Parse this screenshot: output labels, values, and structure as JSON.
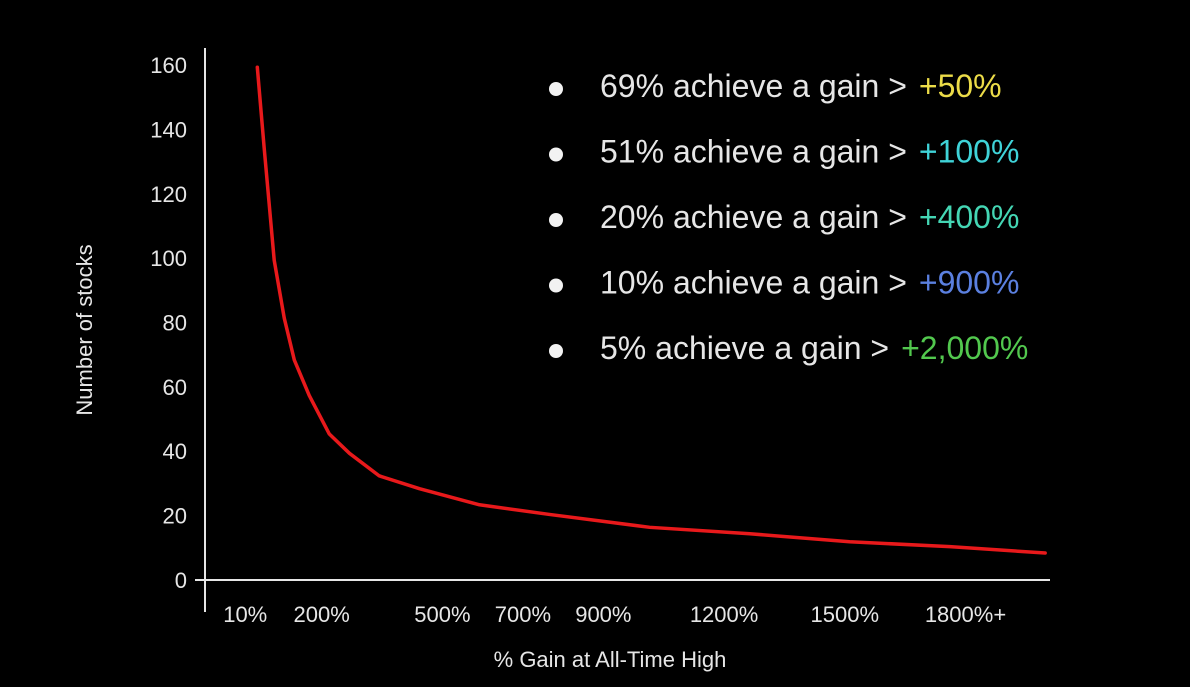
{
  "chart_data": {
    "type": "line",
    "y_label": "Number of stocks",
    "x_label": "% Gain at All-Time High",
    "x": [
      40,
      57,
      82,
      107,
      132,
      169,
      219,
      269,
      343,
      443,
      592,
      766,
      1015,
      1264,
      1512,
      1761,
      1998
    ],
    "values": [
      160,
      135,
      100,
      82,
      69,
      58,
      46,
      40,
      33,
      29,
      24,
      21,
      17,
      15,
      12.5,
      11,
      9
    ],
    "color": "#e8191b",
    "xlim": [
      -90,
      2010
    ],
    "xticks": [
      {
        "value": 10,
        "label": "10%"
      },
      {
        "value": 200,
        "label": "200%"
      },
      {
        "value": 500,
        "label": "500%"
      },
      {
        "value": 700,
        "label": "700%"
      },
      {
        "value": 900,
        "label": "900%"
      },
      {
        "value": 1200,
        "label": "1200%"
      },
      {
        "value": 1500,
        "label": "1500%"
      },
      {
        "value": 1800,
        "label": "1800%+"
      }
    ],
    "ylim": [
      0,
      166
    ],
    "yticks": [
      0,
      20,
      40,
      60,
      80,
      100,
      120,
      140,
      160
    ],
    "annotations": [
      {
        "text": "69% achieve a gain >",
        "highlight": "+50%",
        "color": "#ecdc48"
      },
      {
        "text": "51% achieve a gain >",
        "highlight": "+100%",
        "color": "#3fd3d8"
      },
      {
        "text": "20% achieve a gain >",
        "highlight": "+400%",
        "color": "#44d6b4"
      },
      {
        "text": "10% achieve a gain >",
        "highlight": "+900%",
        "color": "#5b80e0"
      },
      {
        "text": "5% achieve a gain >",
        "highlight": "+2,000%",
        "color": "#52c84e"
      }
    ]
  }
}
